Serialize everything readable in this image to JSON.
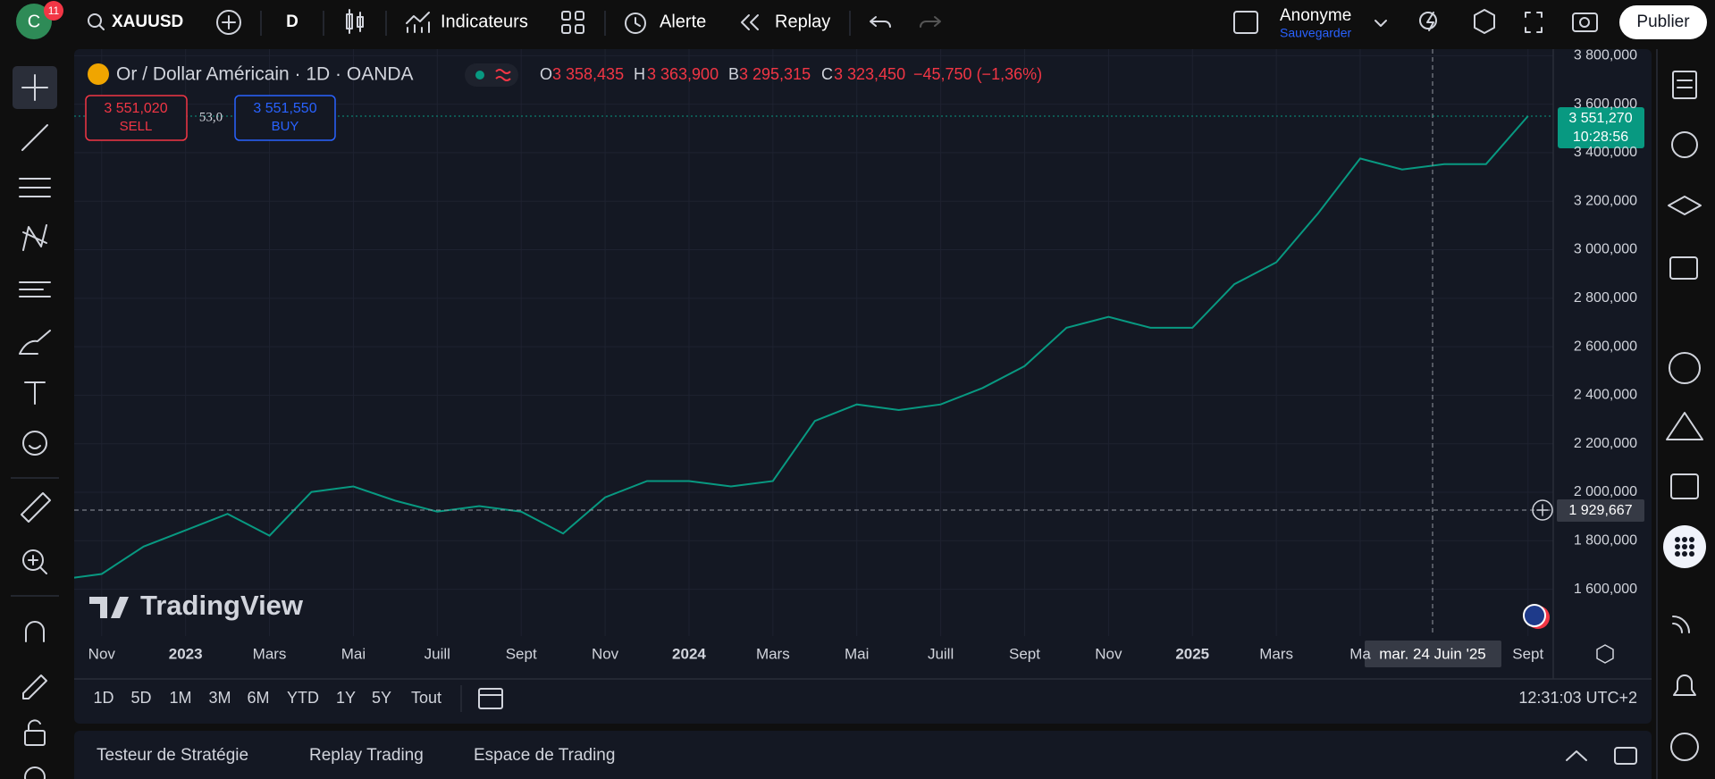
{
  "top_bar": {
    "avatar": "C",
    "badge": "11",
    "symbol": "XAUUSD",
    "interval": "D",
    "indicators": "Indicateurs",
    "alert": "Alerte",
    "replay": "Replay",
    "user": "Anonyme",
    "save": "Sauvegarder",
    "publish": "Publier"
  },
  "legend": {
    "title": "Or / Dollar Américain · 1D · OANDA",
    "open_label": "O",
    "open": "3 358,435",
    "high_label": "H",
    "high": "3 363,900",
    "low_label": "B",
    "low": "3 295,315",
    "close_label": "C",
    "close": "3 323,450",
    "change": "−45,750 (−1,36%)"
  },
  "trade": {
    "sell_price": "3 551,020",
    "sell": "SELL",
    "spread": "53,0",
    "buy_price": "3 551,550",
    "buy": "BUY"
  },
  "watermark": "TradingView",
  "price_tags": {
    "last": "3 551,270",
    "countdown": "10:28:56",
    "crosshair": "1 929,667",
    "crosshair_date": "mar. 24 Juin '25"
  },
  "chart_data": {
    "type": "line",
    "x": [
      "2022-10",
      "2022-11",
      "2022-12",
      "2023-01",
      "2023-02",
      "2023-03",
      "2023-04",
      "2023-05",
      "2023-06",
      "2023-07",
      "2023-08",
      "2023-09",
      "2023-10",
      "2023-11",
      "2023-12",
      "2024-01",
      "2024-02",
      "2024-03",
      "2024-04",
      "2024-05",
      "2024-06",
      "2024-07",
      "2024-08",
      "2024-09",
      "2024-10",
      "2024-11",
      "2024-12",
      "2025-01",
      "2025-02",
      "2025-03",
      "2025-04",
      "2025-05",
      "2025-06",
      "2025-07",
      "2025-08",
      "2025-09"
    ],
    "series": [
      {
        "color": "#089981",
        "values": [
          1640,
          1663,
          1776,
          1843,
          1911,
          1821,
          2001,
          2024,
          1965,
          1920,
          1943,
          1920,
          1830,
          1979,
          2046,
          2046,
          2024,
          2046,
          2294,
          2362,
          2339,
          2362,
          2430,
          2520,
          2678,
          2723,
          2678,
          2678,
          2858,
          2948,
          3151,
          3376,
          3331,
          3353,
          3353,
          3551.27
        ]
      }
    ],
    "ylim": [
      1407,
      3827
    ],
    "yticks": [
      {
        "value": 1600,
        "label": "1 600,000"
      },
      {
        "value": 1800,
        "label": "1 800,000"
      },
      {
        "value": 2000,
        "label": "2 000,000"
      },
      {
        "value": 2200,
        "label": "2 200,000"
      },
      {
        "value": 2400,
        "label": "2 400,000"
      },
      {
        "value": 2600,
        "label": "2 600,000"
      },
      {
        "value": 2800,
        "label": "2 800,000"
      },
      {
        "value": 3000,
        "label": "3 000,000"
      },
      {
        "value": 3200,
        "label": "3 200,000"
      },
      {
        "value": 3400,
        "label": "3 400,000"
      },
      {
        "value": 3600,
        "label": "3 600,000"
      },
      {
        "value": 3800,
        "label": "3 800,000"
      }
    ],
    "xticks": [
      {
        "value": "2022-11",
        "label": "Nov"
      },
      {
        "value": "2023-01",
        "label": "2023"
      },
      {
        "value": "2023-03",
        "label": "Mars"
      },
      {
        "value": "2023-05",
        "label": "Mai"
      },
      {
        "value": "2023-07",
        "label": "Juill"
      },
      {
        "value": "2023-09",
        "label": "Sept"
      },
      {
        "value": "2023-11",
        "label": "Nov"
      },
      {
        "value": "2024-01",
        "label": "2024"
      },
      {
        "value": "2024-03",
        "label": "Mars"
      },
      {
        "value": "2024-05",
        "label": "Mai"
      },
      {
        "value": "2024-07",
        "label": "Juill"
      },
      {
        "value": "2024-09",
        "label": "Sept"
      },
      {
        "value": "2024-11",
        "label": "Nov"
      },
      {
        "value": "2025-01",
        "label": "2025"
      },
      {
        "value": "2025-03",
        "label": "Mars"
      },
      {
        "value": "2025-05",
        "label": "Ma"
      },
      {
        "value": "2025-09",
        "label": "Sept"
      }
    ],
    "grid": true
  },
  "range_bar": {
    "ranges": [
      "1D",
      "5D",
      "1M",
      "3M",
      "6M",
      "YTD",
      "1Y",
      "5Y",
      "Tout"
    ],
    "clock": "12:31:03 UTC+2"
  },
  "bottom_tabs": [
    "Testeur de Stratégie",
    "Replay Trading",
    "Espace de Trading"
  ]
}
